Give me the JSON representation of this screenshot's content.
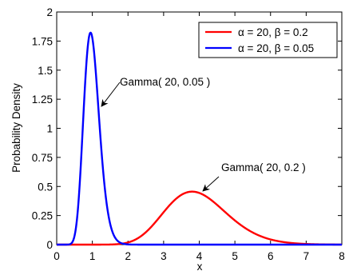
{
  "chart_data": {
    "type": "line",
    "title": "",
    "xlabel": "x",
    "ylabel": "Probability Density",
    "xlim": [
      0,
      8
    ],
    "ylim": [
      0,
      2
    ],
    "x_ticks": [
      "0",
      "1",
      "2",
      "3",
      "4",
      "5",
      "6",
      "7",
      "8"
    ],
    "y_ticks": [
      "0",
      "0.25",
      "0.5",
      "0.75",
      "1",
      "1.25",
      "1.5",
      "1.75",
      "2"
    ],
    "grid": false,
    "legend_position": "top-right",
    "series": [
      {
        "name": "α = 20, β = 0.2",
        "color": "#ff0000",
        "distribution": "gamma",
        "shape": 20,
        "scale": 0.2,
        "peak": {
          "x": 3.8,
          "y": 0.45
        }
      },
      {
        "name": "α = 20, β = 0.05",
        "color": "#0000ff",
        "distribution": "gamma",
        "shape": 20,
        "scale": 0.05,
        "peak": {
          "x": 0.95,
          "y": 1.82
        }
      }
    ],
    "annotations": [
      {
        "text": "Gamma( 20, 0.05 )",
        "target": {
          "x": 1.2,
          "y": 0.98
        }
      },
      {
        "text": "Gamma( 20, 0.2 )",
        "target": {
          "x": 3.95,
          "y": 0.47
        }
      }
    ]
  }
}
